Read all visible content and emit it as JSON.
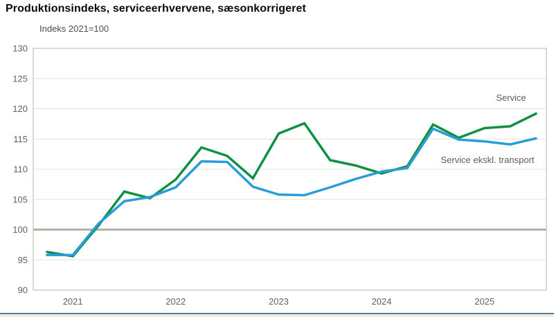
{
  "header": {
    "title": "Produktionsindeks, serviceerhvervene, sæsonkorrigeret",
    "subtitle": "Indeks 2021=100"
  },
  "chart_data": {
    "type": "line",
    "title": "Produktionsindeks, serviceerhvervene, sæsonkorrigeret",
    "subtitle": "Indeks 2021=100",
    "x": [
      "2020K4",
      "2021K1",
      "2021K2",
      "2021K3",
      "2021K4",
      "2022K1",
      "2022K2",
      "2022K3",
      "2022K4",
      "2023K1",
      "2023K2",
      "2023K3",
      "2023K4",
      "2024K1",
      "2024K2",
      "2024K3",
      "2024K4",
      "2025K1",
      "2025K2",
      "2025K3"
    ],
    "year_labels": [
      "2021",
      "2022",
      "2023",
      "2024",
      "2025"
    ],
    "ylim": [
      90,
      130
    ],
    "yticks": [
      90,
      95,
      100,
      105,
      110,
      115,
      120,
      125,
      130
    ],
    "baseline_value": 100,
    "grid": true,
    "legend_position": "inline-labels-right",
    "series": [
      {
        "name": "Service",
        "slug": "service",
        "color": "#0f9043",
        "label_pos": {
          "x": 738,
          "y": 146
        },
        "values": [
          96.3,
          95.6,
          100.7,
          106.3,
          105.2,
          108.3,
          113.6,
          112.2,
          108.5,
          115.9,
          117.6,
          111.5,
          110.6,
          109.3,
          110.5,
          117.4,
          115.2,
          116.8,
          117.1,
          119.2
        ]
      },
      {
        "name": "Service ekskl. transport",
        "slug": "service-ekskl-transport",
        "color": "#299dd8",
        "label_pos": {
          "x": 704,
          "y": 236
        },
        "values": [
          95.8,
          95.8,
          101.0,
          104.7,
          105.4,
          107.0,
          111.3,
          111.2,
          107.1,
          105.8,
          105.7,
          107.0,
          108.4,
          109.6,
          110.2,
          116.7,
          114.9,
          114.6,
          114.1,
          115.1
        ]
      }
    ]
  },
  "styles": {
    "grid_color": "#e3e3dc",
    "baseline_color": "#b2b2a8",
    "border_color": "#b5b5ab",
    "axis_text_color": "#63635a",
    "label_text_color": "#5d5d55",
    "title_color": "#0a0a0a",
    "subtitle_color": "#4c4c46",
    "footer_line_color": "#5b7f92",
    "footer_bg": "#ebebe8"
  }
}
